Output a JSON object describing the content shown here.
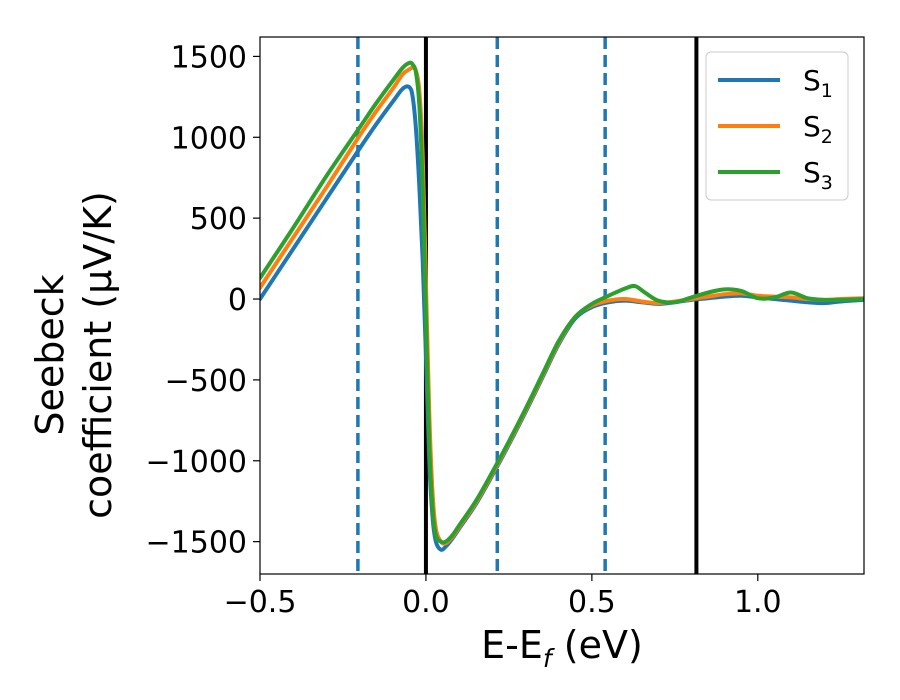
{
  "chart_data": {
    "type": "line",
    "xlabel": "E-E",
    "xlabel_sub": "f",
    "xlabel_unit": " (eV)",
    "ylabel_line1": "Seebeck",
    "ylabel_line2": "coefficient  (μV/K)",
    "xlim": [
      -0.5,
      1.32
    ],
    "ylim": [
      -1700,
      1620
    ],
    "xticks": [
      -0.5,
      0.0,
      0.5,
      1.0
    ],
    "xtick_labels": [
      "−0.5",
      "0.0",
      "0.5",
      "1.0"
    ],
    "yticks": [
      1500,
      1000,
      500,
      0,
      -500,
      -1000,
      -1500
    ],
    "ytick_labels": [
      "1500",
      "1000",
      "500",
      "0",
      "−500",
      "−1000",
      "−1500"
    ],
    "legend_position": "top-right",
    "vertical_lines": [
      {
        "x": -0.205,
        "style": "dashed",
        "color": "#1f77b4"
      },
      {
        "x": 0.0,
        "style": "solid",
        "color": "#000000"
      },
      {
        "x": 0.215,
        "style": "dashed",
        "color": "#1f77b4"
      },
      {
        "x": 0.54,
        "style": "dashed",
        "color": "#1f77b4"
      },
      {
        "x": 0.815,
        "style": "solid",
        "color": "#000000"
      }
    ],
    "series": [
      {
        "name": "S",
        "name_sub": "1",
        "color": "#1f77b4",
        "x": [
          -0.5,
          -0.4,
          -0.3,
          -0.2,
          -0.15,
          -0.1,
          -0.07,
          -0.05,
          -0.04,
          -0.03,
          -0.02,
          -0.01,
          0.0,
          0.01,
          0.02,
          0.03,
          0.045,
          0.06,
          0.08,
          0.1,
          0.15,
          0.2,
          0.25,
          0.3,
          0.35,
          0.4,
          0.45,
          0.5,
          0.55,
          0.6,
          0.65,
          0.7,
          0.75,
          0.8,
          0.85,
          0.9,
          0.95,
          1.0,
          1.05,
          1.1,
          1.15,
          1.2,
          1.25,
          1.32
        ],
        "y": [
          0,
          310,
          620,
          930,
          1080,
          1220,
          1300,
          1310,
          1250,
          1050,
          700,
          250,
          -350,
          -1000,
          -1350,
          -1500,
          -1550,
          -1530,
          -1480,
          -1420,
          -1270,
          -1090,
          -900,
          -700,
          -490,
          -280,
          -120,
          -50,
          -20,
          -10,
          -20,
          -30,
          -20,
          -5,
          5,
          15,
          20,
          10,
          0,
          -10,
          -20,
          -25,
          -15,
          -5
        ]
      },
      {
        "name": "S",
        "name_sub": "2",
        "color": "#ff7f0e",
        "x": [
          -0.5,
          -0.4,
          -0.3,
          -0.2,
          -0.15,
          -0.1,
          -0.07,
          -0.05,
          -0.04,
          -0.03,
          -0.02,
          -0.01,
          0.0,
          0.01,
          0.02,
          0.03,
          0.045,
          0.06,
          0.08,
          0.1,
          0.15,
          0.2,
          0.25,
          0.3,
          0.35,
          0.4,
          0.45,
          0.5,
          0.55,
          0.6,
          0.65,
          0.7,
          0.75,
          0.8,
          0.85,
          0.9,
          0.95,
          1.0,
          1.05,
          1.1,
          1.15,
          1.2,
          1.25,
          1.32
        ],
        "y": [
          70,
          380,
          690,
          1010,
          1160,
          1300,
          1390,
          1420,
          1430,
          1410,
          1290,
          900,
          100,
          -700,
          -1200,
          -1420,
          -1500,
          -1510,
          -1470,
          -1410,
          -1260,
          -1080,
          -890,
          -690,
          -480,
          -270,
          -110,
          -40,
          -10,
          0,
          -15,
          -25,
          -15,
          0,
          15,
          30,
          35,
          20,
          15,
          10,
          0,
          -5,
          0,
          5
        ]
      },
      {
        "name": "S",
        "name_sub": "3",
        "color": "#2ca02c",
        "x": [
          -0.5,
          -0.4,
          -0.3,
          -0.2,
          -0.15,
          -0.1,
          -0.07,
          -0.05,
          -0.04,
          -0.03,
          -0.02,
          -0.01,
          0.0,
          0.01,
          0.02,
          0.03,
          0.045,
          0.06,
          0.08,
          0.1,
          0.15,
          0.2,
          0.25,
          0.3,
          0.35,
          0.4,
          0.45,
          0.5,
          0.55,
          0.6,
          0.63,
          0.66,
          0.7,
          0.75,
          0.8,
          0.85,
          0.9,
          0.95,
          1.0,
          1.05,
          1.1,
          1.15,
          1.2,
          1.25,
          1.32
        ],
        "y": [
          130,
          440,
          760,
          1060,
          1210,
          1350,
          1430,
          1460,
          1450,
          1400,
          1200,
          700,
          -100,
          -900,
          -1300,
          -1460,
          -1500,
          -1500,
          -1460,
          -1400,
          -1250,
          -1070,
          -880,
          -680,
          -470,
          -260,
          -110,
          -30,
          20,
          65,
          80,
          40,
          -10,
          -20,
          10,
          40,
          60,
          50,
          5,
          10,
          40,
          5,
          -5,
          -5,
          0
        ]
      }
    ]
  }
}
